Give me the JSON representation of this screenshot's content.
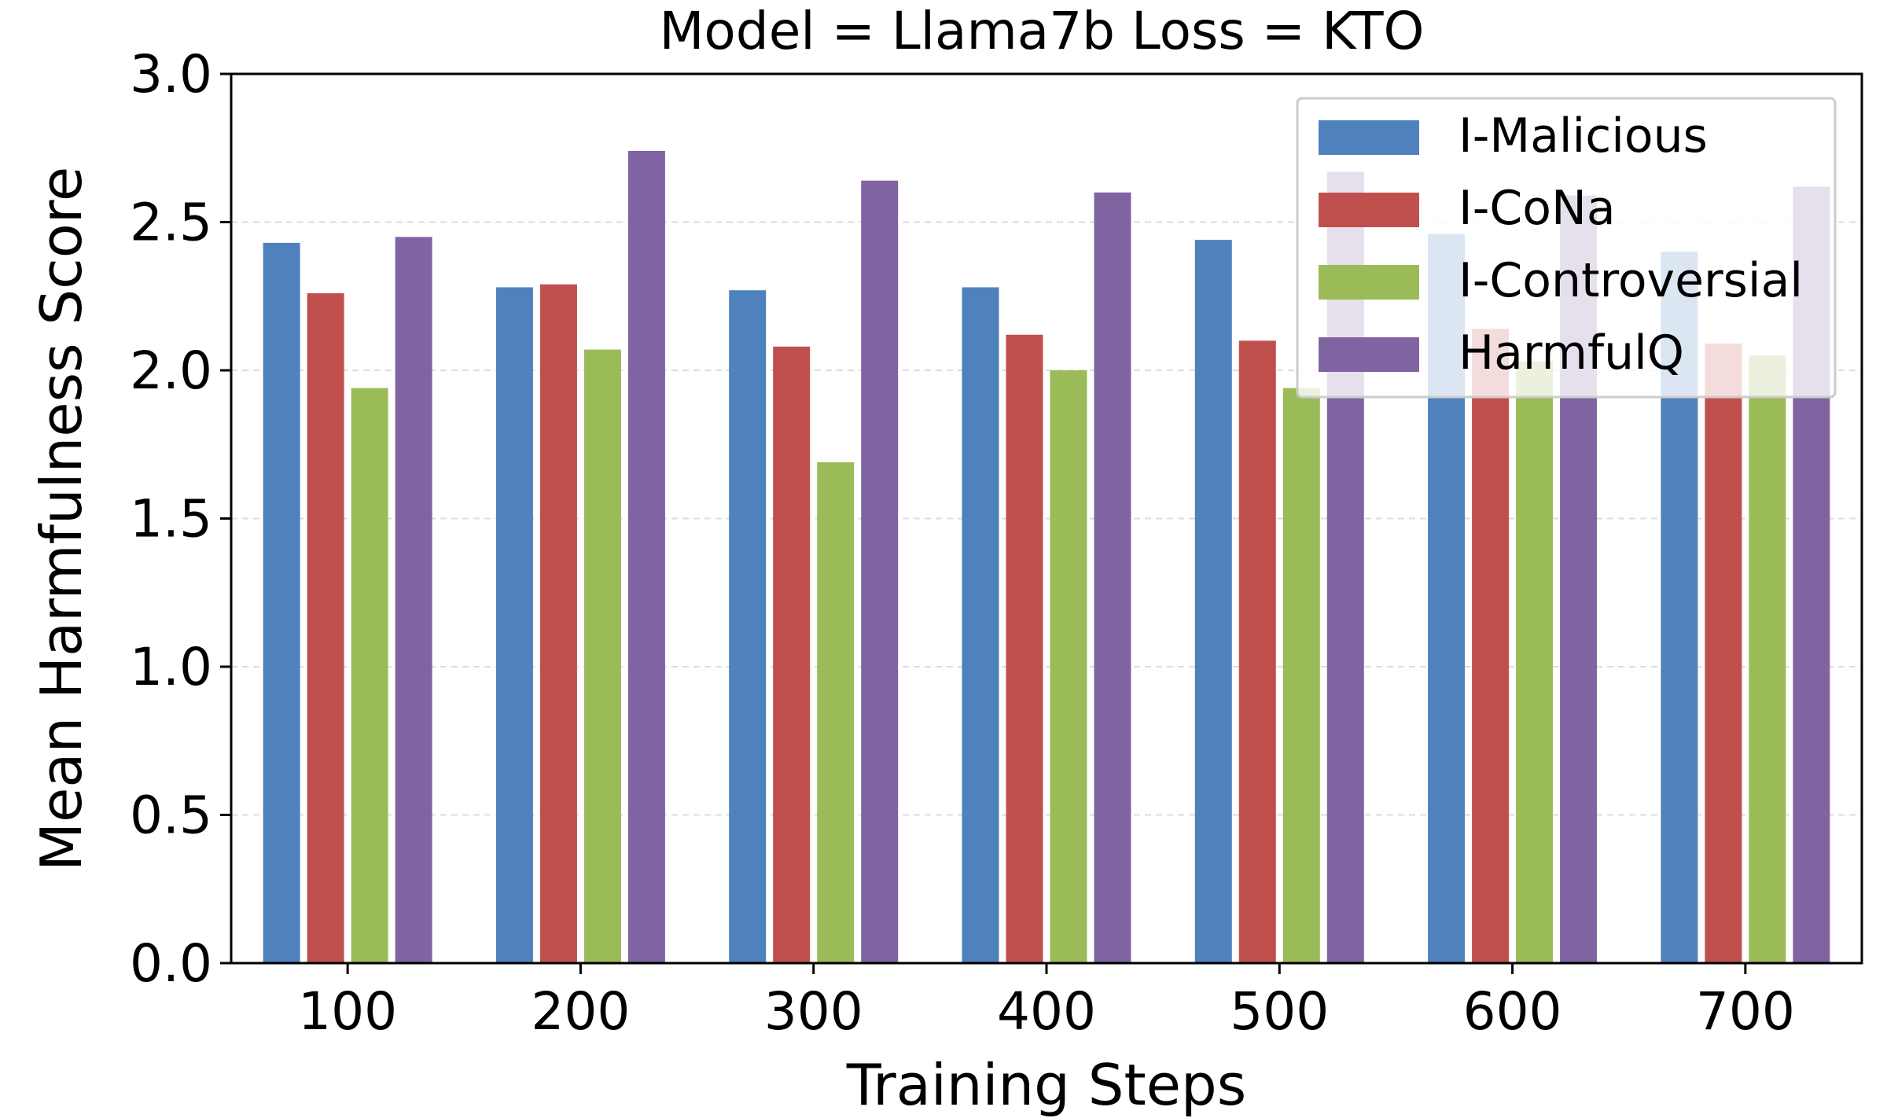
{
  "chart_data": {
    "type": "bar",
    "title": "Model = Llama7b   Loss = KTO",
    "xlabel": "Training Steps",
    "ylabel": "Mean Harmfulness Score",
    "categories": [
      "100",
      "200",
      "300",
      "400",
      "500",
      "600",
      "700"
    ],
    "ylim": [
      0,
      3.0
    ],
    "yticks": [
      "0.0",
      "0.5",
      "1.0",
      "1.5",
      "2.0",
      "2.5",
      "3.0"
    ],
    "grid": true,
    "legend_position": "top-right",
    "series": [
      {
        "name": "I-Malicious",
        "color": "#4f81bd",
        "values": [
          2.43,
          2.28,
          2.27,
          2.28,
          2.44,
          2.46,
          2.4
        ]
      },
      {
        "name": "I-CoNa",
        "color": "#c0504d",
        "values": [
          2.26,
          2.29,
          2.08,
          2.12,
          2.1,
          2.14,
          2.09
        ]
      },
      {
        "name": "I-Controversial",
        "color": "#9bbb59",
        "values": [
          1.94,
          2.07,
          1.69,
          2.0,
          1.94,
          2.03,
          2.05
        ]
      },
      {
        "name": "HarmfulQ",
        "color": "#8064a2",
        "values": [
          2.45,
          2.74,
          2.64,
          2.6,
          2.67,
          2.59,
          2.62
        ]
      }
    ]
  }
}
